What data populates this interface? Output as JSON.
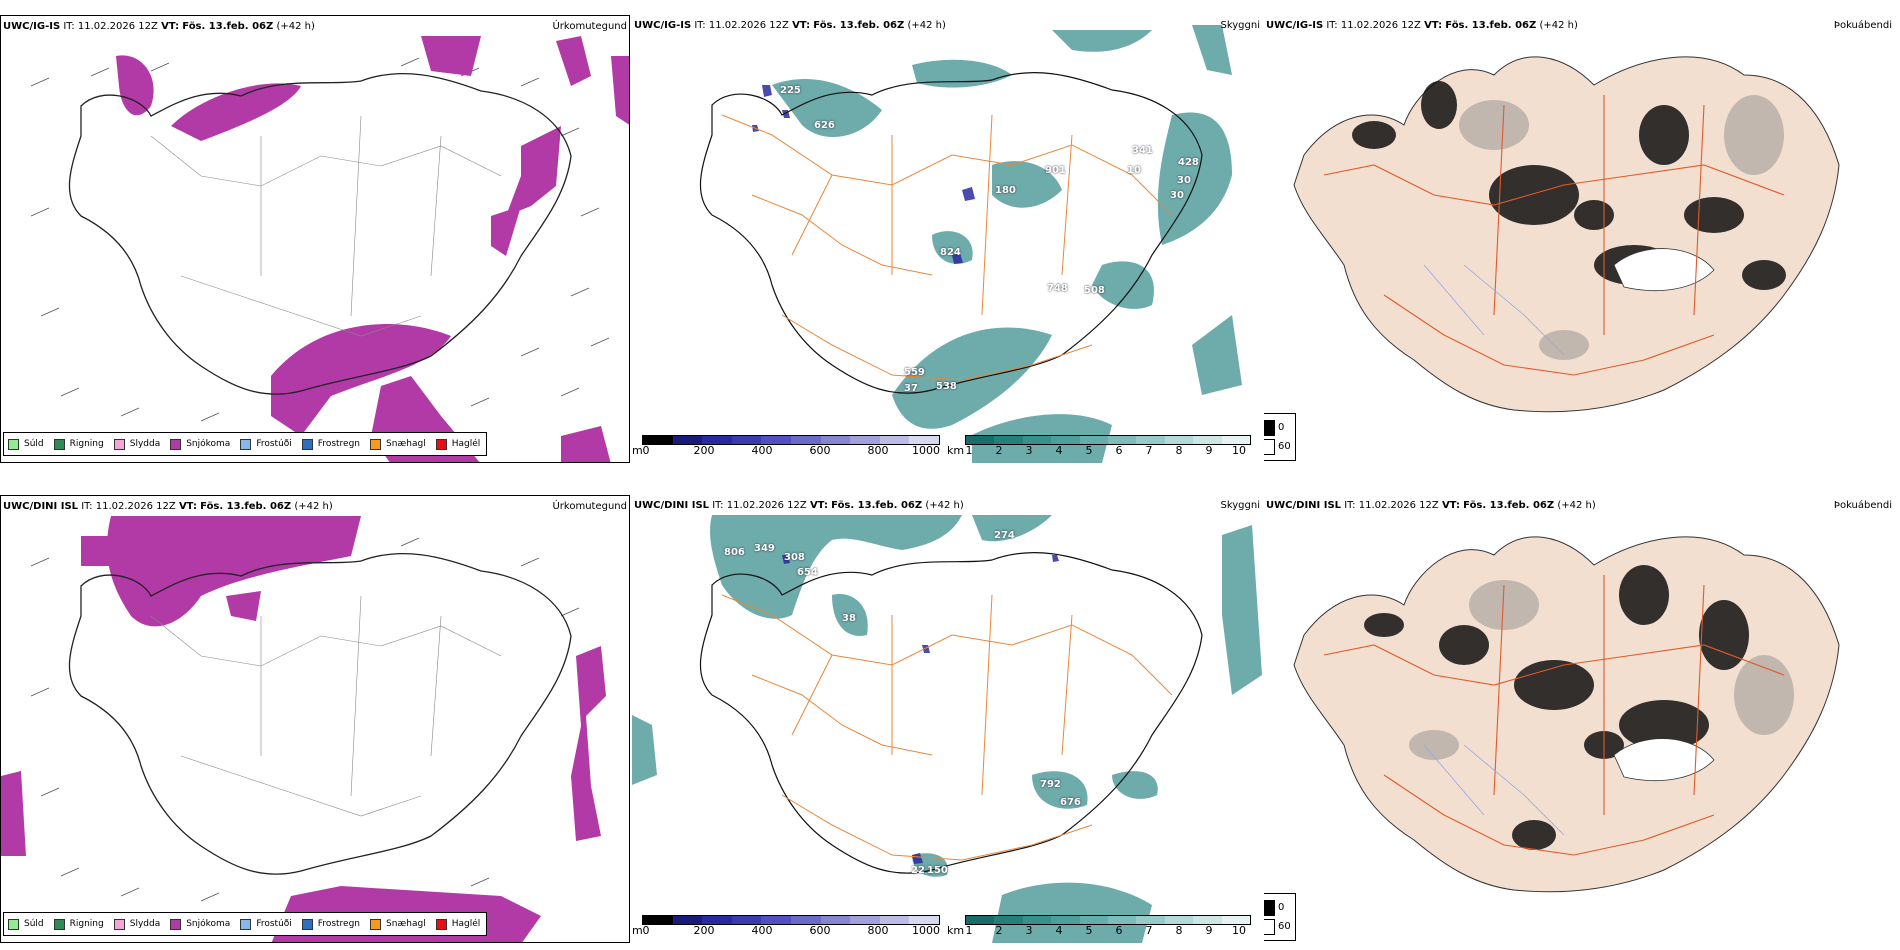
{
  "rows": [
    {
      "precip": {
        "model": "UWC/IG-IS",
        "it_label": "IT:",
        "it_value": "11.02.2026 12Z",
        "vt_label": "VT:",
        "vt_value": "Fös. 13.feb. 06Z",
        "lead": "(+42 h)",
        "title": "Úrkomutegund"
      },
      "visibility": {
        "model": "UWC/IG-IS",
        "it_label": "IT:",
        "it_value": "11.02.2026 12Z",
        "vt_label": "VT:",
        "vt_value": "Fös. 13.feb. 06Z",
        "lead": "(+42 h)",
        "title": "Skyggni",
        "labels": [
          "225",
          "626",
          "901",
          "180",
          "428",
          "30",
          "30",
          "824",
          "748",
          "508",
          "559",
          "37",
          "538",
          "341",
          "10"
        ]
      },
      "fog": {
        "model": "UWC/IG-IS",
        "it_label": "IT:",
        "it_value": "11.02.2026 12Z",
        "vt_label": "VT:",
        "vt_value": "Fös. 13.feb. 06Z",
        "lead": "(+42 h)",
        "title": "Þokuábendi"
      }
    },
    {
      "precip": {
        "model": "UWC/DINI ISL",
        "it_label": "IT:",
        "it_value": "11.02.2026 12Z",
        "vt_label": "VT:",
        "vt_value": "Fös. 13.feb. 06Z",
        "lead": "(+42 h)",
        "title": "Úrkomutegund"
      },
      "visibility": {
        "model": "UWC/DINI ISL",
        "it_label": "IT:",
        "it_value": "11.02.2026 12Z",
        "vt_label": "VT:",
        "vt_value": "Fös. 13.feb. 06Z",
        "lead": "(+42 h)",
        "title": "Skyggni",
        "labels": [
          "806",
          "349",
          "308",
          "654",
          "274",
          "792",
          "676",
          "22",
          "150",
          "38"
        ]
      },
      "fog": {
        "model": "UWC/DINI ISL",
        "it_label": "IT:",
        "it_value": "11.02.2026 12Z",
        "vt_label": "VT:",
        "vt_value": "Fös. 13.feb. 06Z",
        "lead": "(+42 h)",
        "title": "Þokuábendi"
      }
    }
  ],
  "precip_legend": [
    {
      "label": "Súld",
      "color": "#90ee90"
    },
    {
      "label": "Rigning",
      "color": "#2e8b57"
    },
    {
      "label": "Slydda",
      "color": "#f4a6d7"
    },
    {
      "label": "Snjókoma",
      "color": "#b23aa6"
    },
    {
      "label": "Frostúði",
      "color": "#87b8ee"
    },
    {
      "label": "Frostregn",
      "color": "#2f6fbf"
    },
    {
      "label": "Snæhagl",
      "color": "#f59a1e"
    },
    {
      "label": "Haglél",
      "color": "#e81010"
    }
  ],
  "height_scale": {
    "unit": "m",
    "ticks": [
      "0",
      "200",
      "400",
      "600",
      "800",
      "1000"
    ],
    "colors": [
      "#000000",
      "#1a1a7a",
      "#2a2aa0",
      "#3b3bb0",
      "#5050c0",
      "#6a6ac8",
      "#8585d0",
      "#a0a0da",
      "#bcbce5",
      "#d8d8f0"
    ]
  },
  "vis_scale": {
    "unit": "km",
    "ticks": [
      "1",
      "2",
      "3",
      "4",
      "5",
      "6",
      "7",
      "8",
      "9",
      "10"
    ],
    "colors": [
      "#1b6b6b",
      "#2a7d7d",
      "#3a8e8e",
      "#4f9d9d",
      "#66acac",
      "#7fbbbb",
      "#99caca",
      "#b3d9d9",
      "#cde7e7",
      "#e6f3f3"
    ]
  },
  "fog_legend": {
    "dark": "0",
    "light": "60"
  },
  "colors": {
    "snow": "#b23aa6",
    "vis_fill": "#3e8f8f",
    "road": "#e8873a",
    "land_fog": "#f3dfd0",
    "road_fog": "#e05a2a",
    "river": "#8fa8e8"
  }
}
